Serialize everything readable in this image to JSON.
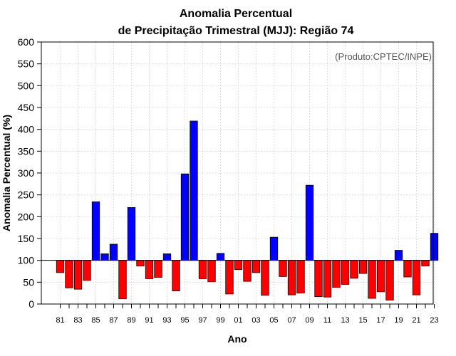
{
  "chart_data": {
    "type": "bar",
    "title": [
      "Anomalia Percentual",
      "de Precipitação Trimestral (MJJ): Região 74"
    ],
    "xlabel": "Ano",
    "ylabel": "Anomalia Percentual (%)",
    "credit": "(Produto:CPTEC/INPE)",
    "ylim": [
      0,
      600
    ],
    "baseline": 100,
    "yticks": [
      0,
      50,
      100,
      150,
      200,
      250,
      300,
      350,
      400,
      450,
      500,
      550,
      600
    ],
    "grid": true,
    "colors": {
      "above": "#0000ff",
      "below": "#ff0000",
      "outline": "#000000",
      "grid": "#dddddd"
    },
    "categories": [
      "81",
      "82",
      "83",
      "84",
      "85",
      "86",
      "87",
      "88",
      "89",
      "90",
      "91",
      "92",
      "93",
      "94",
      "95",
      "96",
      "97",
      "98",
      "99",
      "00",
      "01",
      "02",
      "03",
      "04",
      "05",
      "06",
      "07",
      "08",
      "09",
      "10",
      "11",
      "12",
      "13",
      "14",
      "15",
      "16",
      "17",
      "18",
      "19",
      "20",
      "21",
      "22",
      "23"
    ],
    "xtick_labels": [
      "81",
      "83",
      "85",
      "87",
      "89",
      "91",
      "93",
      "95",
      "97",
      "99",
      "01",
      "03",
      "05",
      "07",
      "09",
      "11",
      "13",
      "15",
      "17",
      "19",
      "21",
      "23"
    ],
    "values": [
      72,
      37,
      34,
      54,
      234,
      115,
      137,
      12,
      221,
      87,
      58,
      61,
      115,
      30,
      298,
      419,
      58,
      51,
      116,
      23,
      79,
      52,
      72,
      20,
      153,
      63,
      21,
      25,
      272,
      17,
      16,
      38,
      45,
      59,
      70,
      13,
      28,
      9,
      123,
      62,
      21,
      87,
      162
    ]
  }
}
